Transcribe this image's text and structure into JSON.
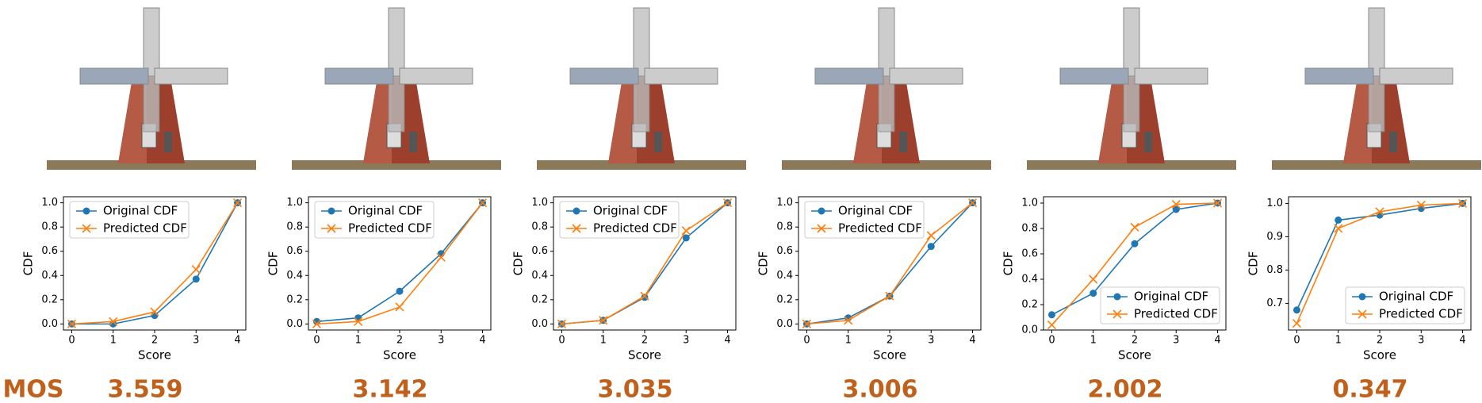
{
  "mos_label": "MOS",
  "chart_data": [
    {
      "type": "line",
      "caption": 3.559,
      "xlabel": "Score",
      "ylabel": "CDF",
      "x": [
        0,
        1,
        2,
        3,
        4
      ],
      "xlim": [
        -0.2,
        4.2
      ],
      "xticks": [
        0,
        1,
        2,
        3,
        4
      ],
      "ylim": [
        -0.05,
        1.05
      ],
      "yticks": [
        {
          "value": 0,
          "label": "0.0"
        },
        0.2,
        0.4,
        0.6,
        0.8,
        {
          "value": 1,
          "label": "1.0"
        }
      ],
      "legend": "upper left",
      "series": [
        {
          "name": "Original CDF",
          "color": "#1f77b4",
          "marker": "o",
          "values": [
            0,
            0,
            0.07,
            0.37,
            1
          ]
        },
        {
          "name": "Predicted CDF",
          "color": "#ff7f0e",
          "marker": "x",
          "values": [
            0,
            0.02,
            0.1,
            0.45,
            1
          ]
        }
      ]
    },
    {
      "type": "line",
      "caption": 3.142,
      "xlabel": "Score",
      "ylabel": "CDF",
      "x": [
        0,
        1,
        2,
        3,
        4
      ],
      "xlim": [
        -0.2,
        4.2
      ],
      "xticks": [
        0,
        1,
        2,
        3,
        4
      ],
      "ylim": [
        -0.05,
        1.05
      ],
      "yticks": [
        {
          "value": 0,
          "label": "0.0"
        },
        0.2,
        0.4,
        0.6,
        0.8,
        {
          "value": 1,
          "label": "1.0"
        }
      ],
      "legend": "upper left",
      "series": [
        {
          "name": "Original CDF",
          "color": "#1f77b4",
          "marker": "o",
          "values": [
            0.02,
            0.05,
            0.27,
            0.58,
            1
          ]
        },
        {
          "name": "Predicted CDF",
          "color": "#ff7f0e",
          "marker": "x",
          "values": [
            0,
            0.02,
            0.14,
            0.55,
            1
          ]
        }
      ]
    },
    {
      "type": "line",
      "caption": 3.035,
      "xlabel": "Score",
      "ylabel": "CDF",
      "x": [
        0,
        1,
        2,
        3,
        4
      ],
      "xlim": [
        -0.2,
        4.2
      ],
      "xticks": [
        0,
        1,
        2,
        3,
        4
      ],
      "ylim": [
        -0.05,
        1.05
      ],
      "yticks": [
        {
          "value": 0,
          "label": "0.0"
        },
        0.2,
        0.4,
        0.6,
        0.8,
        {
          "value": 1,
          "label": "1.0"
        }
      ],
      "legend": "upper left",
      "series": [
        {
          "name": "Original CDF",
          "color": "#1f77b4",
          "marker": "o",
          "values": [
            0,
            0.03,
            0.22,
            0.71,
            1
          ]
        },
        {
          "name": "Predicted CDF",
          "color": "#ff7f0e",
          "marker": "x",
          "values": [
            0,
            0.03,
            0.23,
            0.77,
            1
          ]
        }
      ]
    },
    {
      "type": "line",
      "caption": 3.006,
      "xlabel": "Score",
      "ylabel": "CDF",
      "x": [
        0,
        1,
        2,
        3,
        4
      ],
      "xlim": [
        -0.2,
        4.2
      ],
      "xticks": [
        0,
        1,
        2,
        3,
        4
      ],
      "ylim": [
        -0.05,
        1.05
      ],
      "yticks": [
        {
          "value": 0,
          "label": "0.0"
        },
        0.2,
        0.4,
        0.6,
        0.8,
        {
          "value": 1,
          "label": "1.0"
        }
      ],
      "legend": "upper left",
      "series": [
        {
          "name": "Original CDF",
          "color": "#1f77b4",
          "marker": "o",
          "values": [
            0,
            0.05,
            0.23,
            0.64,
            1
          ]
        },
        {
          "name": "Predicted CDF",
          "color": "#ff7f0e",
          "marker": "x",
          "values": [
            0,
            0.03,
            0.23,
            0.73,
            1
          ]
        }
      ]
    },
    {
      "type": "line",
      "caption": 2.002,
      "xlabel": "Score",
      "ylabel": "CDF",
      "x": [
        0,
        1,
        2,
        3,
        4
      ],
      "xlim": [
        -0.2,
        4.2
      ],
      "xticks": [
        0,
        1,
        2,
        3,
        4
      ],
      "ylim": [
        0,
        1.05
      ],
      "yticks": [
        {
          "value": 0,
          "label": "0.0"
        },
        0.2,
        0.4,
        0.6,
        0.8,
        {
          "value": 1,
          "label": "1.0"
        }
      ],
      "legend": "lower right",
      "series": [
        {
          "name": "Original CDF",
          "color": "#1f77b4",
          "marker": "o",
          "values": [
            0.12,
            0.29,
            0.68,
            0.95,
            1
          ]
        },
        {
          "name": "Predicted CDF",
          "color": "#ff7f0e",
          "marker": "x",
          "values": [
            0.04,
            0.4,
            0.81,
            0.99,
            1
          ]
        }
      ]
    },
    {
      "type": "line",
      "caption": 0.347,
      "xlabel": "Score",
      "ylabel": "CDF",
      "x": [
        0,
        1,
        2,
        3,
        4
      ],
      "xlim": [
        -0.2,
        4.2
      ],
      "xticks": [
        0,
        1,
        2,
        3,
        4
      ],
      "ylim": [
        0.62,
        1.02
      ],
      "yticks": [
        0.7,
        0.8,
        0.9,
        {
          "value": 1,
          "label": "1.0"
        }
      ],
      "legend": "lower right",
      "series": [
        {
          "name": "Original CDF",
          "color": "#1f77b4",
          "marker": "o",
          "values": [
            0.68,
            0.95,
            0.965,
            0.985,
            1
          ]
        },
        {
          "name": "Predicted CDF",
          "color": "#ff7f0e",
          "marker": "x",
          "values": [
            0.64,
            0.925,
            0.975,
            0.995,
            1
          ]
        }
      ]
    }
  ]
}
